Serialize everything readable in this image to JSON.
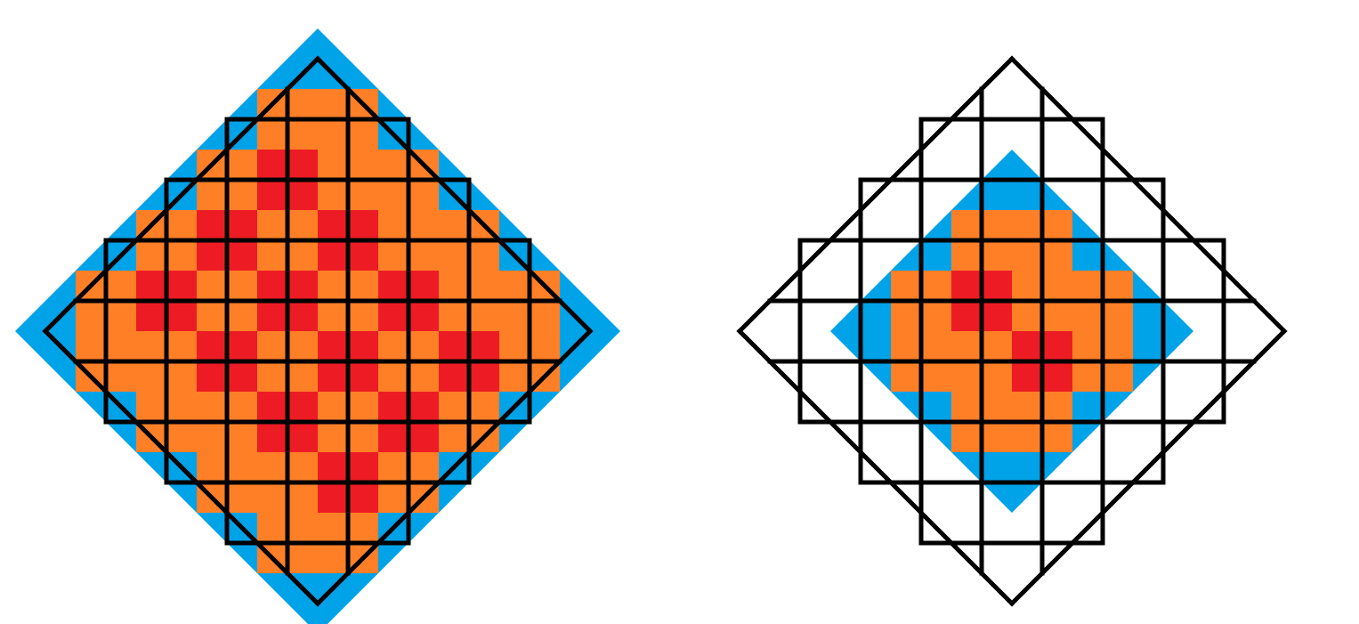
{
  "colors": {
    "background": "#ffffff",
    "outline": "#000000",
    "center": "#ed1c24",
    "orange": "#ff7f27",
    "blue": "#00a2e8",
    "purple": "#a349a4",
    "yellow": "#fff200",
    "green": "#22b14c"
  },
  "figures": [
    {
      "name": "figure-left-full-coloring",
      "colored_radius": 4.5
    },
    {
      "name": "figure-right-partial-coloring",
      "colored_radius": 2.5
    }
  ]
}
